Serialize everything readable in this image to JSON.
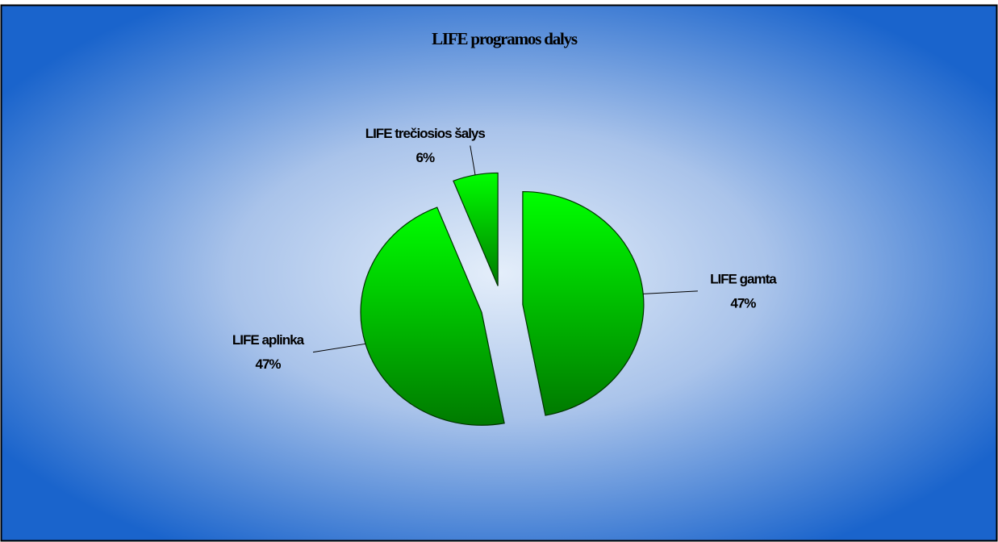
{
  "chart_data": {
    "type": "pie",
    "title": "LIFE programos dalys",
    "categories": [
      "LIFE gamta",
      "LIFE aplinka",
      "LIFE trečiosios šalys"
    ],
    "values": [
      47,
      47,
      6
    ],
    "value_labels": [
      "47%",
      "47%",
      "6%"
    ],
    "color": "#00e000"
  }
}
